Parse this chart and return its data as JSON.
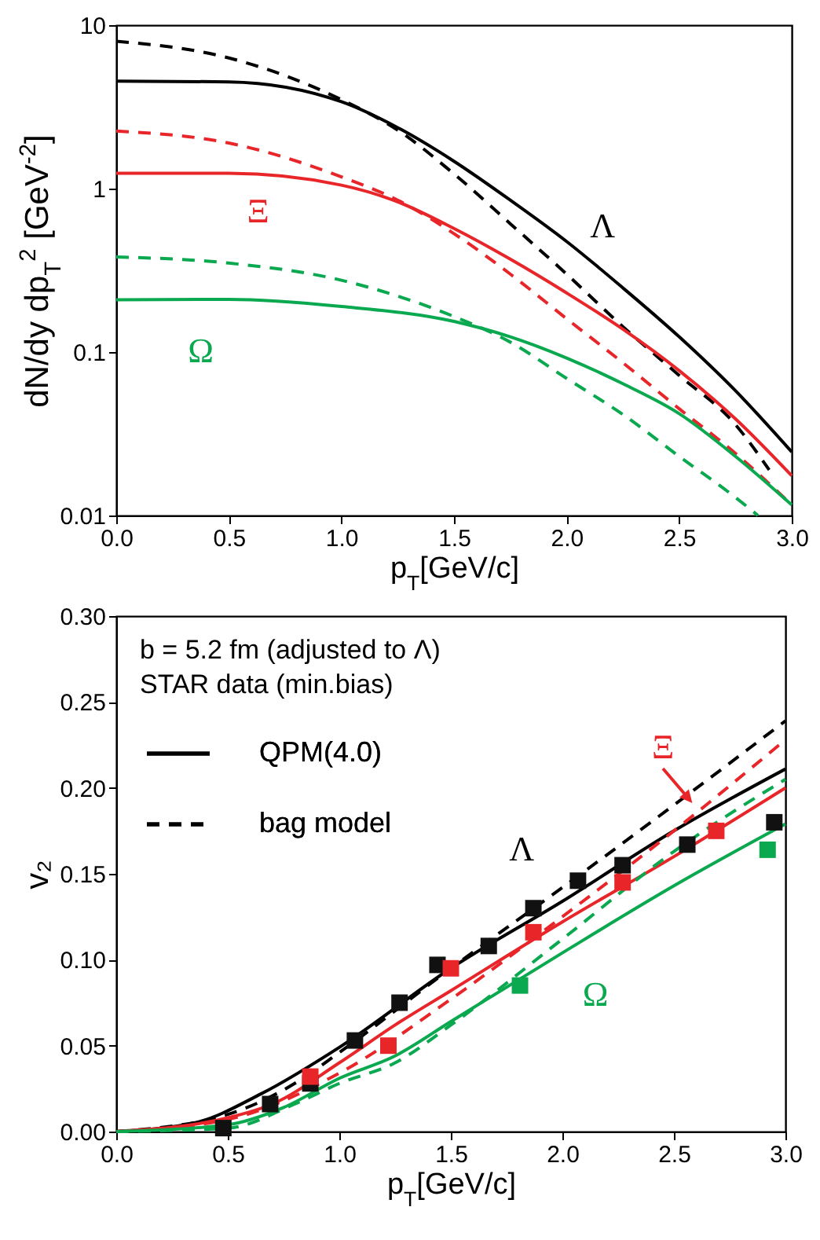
{
  "chart_data": [
    {
      "type": "line",
      "xlabel": "p$_{T}$[GeV/c]",
      "ylabel": "dN/dy dp$_{T}$$^{2}$ [GeV$^{-2}$]",
      "log": true,
      "xlim": [
        0,
        3
      ],
      "ylim": [
        0.01,
        10
      ],
      "xticks": [
        {
          "value": 0,
          "label": "0.0"
        },
        {
          "value": 0.5,
          "label": "0.5"
        },
        {
          "value": 1,
          "label": "1.0"
        },
        {
          "value": 1.5,
          "label": "1.5"
        },
        {
          "value": 2,
          "label": "2.0"
        },
        {
          "value": 2.5,
          "label": "2.5"
        },
        {
          "value": 3,
          "label": "3.0"
        }
      ],
      "yticks": [
        0.01,
        0.1,
        1,
        10
      ],
      "annotations": [
        "Λ",
        "Ξ",
        "Ω"
      ],
      "series": [
        {
          "color": "#000000",
          "line_style": "solid",
          "x": [
            0,
            0.5,
            1,
            1.25,
            1.5,
            1.75,
            2,
            2.25,
            2.5,
            2.75,
            3
          ],
          "values": [
            4.55,
            4.5,
            3.4,
            2.36,
            1.47,
            0.85,
            0.475,
            0.247,
            0.124,
            0.058,
            0.0245
          ]
        },
        {
          "color": "#000000",
          "line_style": "dashed",
          "x": [
            0,
            0.5,
            1,
            1.25,
            1.5,
            1.75,
            2,
            2.25,
            2.5,
            2.75,
            2.9
          ],
          "values": [
            7.98,
            6.3,
            3.5,
            2.28,
            1.23,
            0.61,
            0.3,
            0.143,
            0.072,
            0.036,
            0.019
          ]
        },
        {
          "color": "#e8262a",
          "line_style": "solid",
          "x": [
            0,
            0.5,
            1,
            1.25,
            1.5,
            1.75,
            2,
            2.25,
            2.5,
            2.75,
            3
          ],
          "values": [
            1.24,
            1.24,
            1.05,
            0.83,
            0.57,
            0.37,
            0.23,
            0.138,
            0.077,
            0.039,
            0.0175
          ]
        },
        {
          "color": "#e8262a",
          "line_style": "dashed",
          "x": [
            0,
            0.5,
            1,
            1.25,
            1.5,
            1.75,
            2,
            2.25,
            2.5,
            2.75,
            3
          ],
          "values": [
            2.25,
            1.9,
            1.18,
            0.85,
            0.53,
            0.3,
            0.16,
            0.086,
            0.045,
            0.024,
            0.0116
          ]
        },
        {
          "color": "#0aa84f",
          "line_style": "solid",
          "x": [
            0,
            0.5,
            1,
            1.5,
            1.75,
            2,
            2.25,
            2.5,
            2.75,
            3
          ],
          "values": [
            0.209,
            0.21,
            0.19,
            0.154,
            0.124,
            0.092,
            0.064,
            0.042,
            0.023,
            0.0116
          ]
        },
        {
          "color": "#0aa84f",
          "line_style": "dashed",
          "x": [
            0,
            0.5,
            1,
            1.25,
            1.5,
            1.75,
            2,
            2.25,
            2.5,
            2.75,
            2.85
          ],
          "values": [
            0.382,
            0.35,
            0.275,
            0.22,
            0.165,
            0.115,
            0.069,
            0.0415,
            0.023,
            0.0129,
            0.01
          ]
        }
      ]
    },
    {
      "type": "line",
      "xlabel": "p$_{T}$[GeV/c]",
      "ylabel": "v₂",
      "xlim": [
        0,
        3
      ],
      "ylim": [
        0,
        0.3
      ],
      "xticks": [
        {
          "value": 0,
          "label": "0.0"
        },
        {
          "value": 0.5,
          "label": "0.5"
        },
        {
          "value": 1,
          "label": "1.0"
        },
        {
          "value": 1.5,
          "label": "1.5"
        },
        {
          "value": 2,
          "label": "2.0"
        },
        {
          "value": 2.5,
          "label": "2.5"
        },
        {
          "value": 3,
          "label": "3.0"
        }
      ],
      "yticks": [
        {
          "value": 0,
          "label": "0.00"
        },
        {
          "value": 0.05,
          "label": "0.05"
        },
        {
          "value": 0.1,
          "label": "0.10"
        },
        {
          "value": 0.15,
          "label": "0.15"
        },
        {
          "value": 0.2,
          "label": "0.20"
        },
        {
          "value": 0.25,
          "label": "0.25"
        },
        {
          "value": 0.3,
          "label": "0.30"
        }
      ],
      "legend": "top left",
      "annotations": [
        "b = 5.2 fm (adjusted to Λ)",
        "STAR data (min.bias)",
        "Λ",
        "Ξ",
        "Ω"
      ],
      "series": [
        {
          "name": "QPM(4.0)",
          "color": "#000000",
          "line_style": "solid",
          "x": [
            0,
            0.35,
            0.65,
            1,
            1.5,
            2,
            2.5,
            3
          ],
          "values": [
            0,
            0.005,
            0.022,
            0.049,
            0.095,
            0.134,
            0.175,
            0.211
          ]
        },
        {
          "name": "bag model",
          "color": "#000000",
          "line_style": "dashed",
          "x": [
            0,
            0.5,
            0.8,
            1,
            1.5,
            2,
            2.5,
            3
          ],
          "values": [
            0,
            0.01,
            0.028,
            0.046,
            0.095,
            0.142,
            0.19,
            0.239
          ]
        },
        {
          "color": "#e8262a",
          "line_style": "solid",
          "x": [
            0,
            0.5,
            0.7,
            1,
            1.25,
            1.5,
            2,
            2.5,
            3
          ],
          "values": [
            0,
            0.008,
            0.016,
            0.04,
            0.062,
            0.082,
            0.122,
            0.16,
            0.2
          ]
        },
        {
          "color": "#e8262a",
          "line_style": "dashed",
          "x": [
            0,
            0.5,
            1,
            1.5,
            2,
            2.5,
            3
          ],
          "values": [
            0,
            0.007,
            0.034,
            0.077,
            0.125,
            0.175,
            0.228
          ]
        },
        {
          "color": "#0aa84f",
          "line_style": "solid",
          "x": [
            0,
            0.5,
            0.75,
            1,
            1.25,
            1.5,
            2,
            2.5,
            3
          ],
          "values": [
            0,
            0.004,
            0.014,
            0.031,
            0.044,
            0.064,
            0.104,
            0.143,
            0.179
          ]
        },
        {
          "color": "#0aa84f",
          "line_style": "dashed",
          "x": [
            0,
            0.5,
            0.8,
            1,
            1.25,
            1.5,
            2,
            2.5,
            3
          ],
          "values": [
            0,
            0.002,
            0.016,
            0.028,
            0.04,
            0.062,
            0.112,
            0.163,
            0.205
          ]
        },
        {
          "type": "scatter",
          "marker": "square",
          "color": "#111111",
          "x": [
            0.48,
            0.69,
            0.87,
            1.07,
            1.27,
            1.44,
            1.67,
            1.87,
            2.07,
            2.27,
            2.56,
            2.95
          ],
          "values": [
            0.002,
            0.016,
            0.028,
            0.053,
            0.075,
            0.097,
            0.108,
            0.13,
            0.146,
            0.155,
            0.167,
            0.18
          ]
        },
        {
          "type": "scatter",
          "marker": "square",
          "color": "#e8262a",
          "x": [
            0.87,
            1.22,
            1.5,
            1.87,
            2.27,
            2.69
          ],
          "values": [
            0.032,
            0.05,
            0.095,
            0.116,
            0.145,
            0.175
          ]
        },
        {
          "type": "scatter",
          "marker": "square",
          "color": "#0aa84f",
          "x": [
            1.81,
            2.92
          ],
          "values": [
            0.085,
            0.164
          ]
        }
      ]
    }
  ]
}
